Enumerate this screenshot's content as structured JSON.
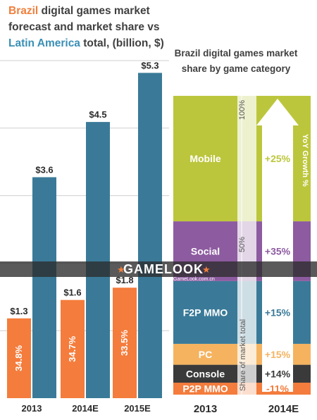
{
  "left": {
    "title_lines": [
      [
        {
          "text": "Brazil",
          "color": "#F07F3C"
        },
        {
          "text": " digital games market",
          "color": "#404040"
        }
      ],
      [
        {
          "text": "forecast and market share vs",
          "color": "#404040"
        }
      ],
      [
        {
          "text": "Latin America",
          "color": "#3A8FB5"
        },
        {
          "text": " total, (billion, $)",
          "color": "#404040"
        }
      ]
    ]
  },
  "right": {
    "title_lines": [
      "Brazil digital games market",
      "share by game category"
    ]
  },
  "chart_data": [
    {
      "type": "bar",
      "categories": [
        "2013",
        "2014E",
        "2015E"
      ],
      "series": [
        {
          "name": "Brazil",
          "values": [
            1.3,
            1.6,
            1.8
          ],
          "labels": [
            "$1.3",
            "$1.6",
            "$1.8"
          ],
          "color": "#F47C3C"
        },
        {
          "name": "Latin America",
          "values": [
            3.6,
            4.5,
            5.3
          ],
          "labels": [
            "$3.6",
            "$4.5",
            "$5.3"
          ],
          "color": "#3A7A98"
        }
      ],
      "brazil_share_labels": [
        "34.8%",
        "34.7%",
        "33.5%"
      ],
      "grid": true,
      "ylim": [
        0,
        5.5
      ]
    },
    {
      "type": "bar",
      "stacked": true,
      "categories": [
        "2013",
        "2014E"
      ],
      "segments": [
        {
          "name": "P2P MMO",
          "share_pct": 4,
          "yoy": "-11%",
          "color": "#F47C3C"
        },
        {
          "name": "Console",
          "share_pct": 6,
          "yoy": "+14%",
          "color": "#3A3A3A"
        },
        {
          "name": "PC",
          "share_pct": 7,
          "yoy": "+15%",
          "color": "#F5B360"
        },
        {
          "name": "F2P MMO",
          "share_pct": 21,
          "yoy": "+15%",
          "color": "#3A7A98"
        },
        {
          "name": "Social",
          "share_pct": 20,
          "yoy": "+35%",
          "color": "#8D5BA0"
        },
        {
          "name": "Mobile",
          "share_pct": 42,
          "yoy": "+25%",
          "color": "#BCC63C"
        }
      ],
      "yaxis_ticks": [
        "100%",
        "50%"
      ],
      "yaxis_label": "Share of market total",
      "arrow_label": "YoY Growth %"
    }
  ],
  "watermark": {
    "text": "GAMELOOK",
    "subtext": "GameLook.com.cn"
  },
  "colors": {
    "dark_text": "#2b2b2b",
    "grid": "#cfcfcf"
  }
}
